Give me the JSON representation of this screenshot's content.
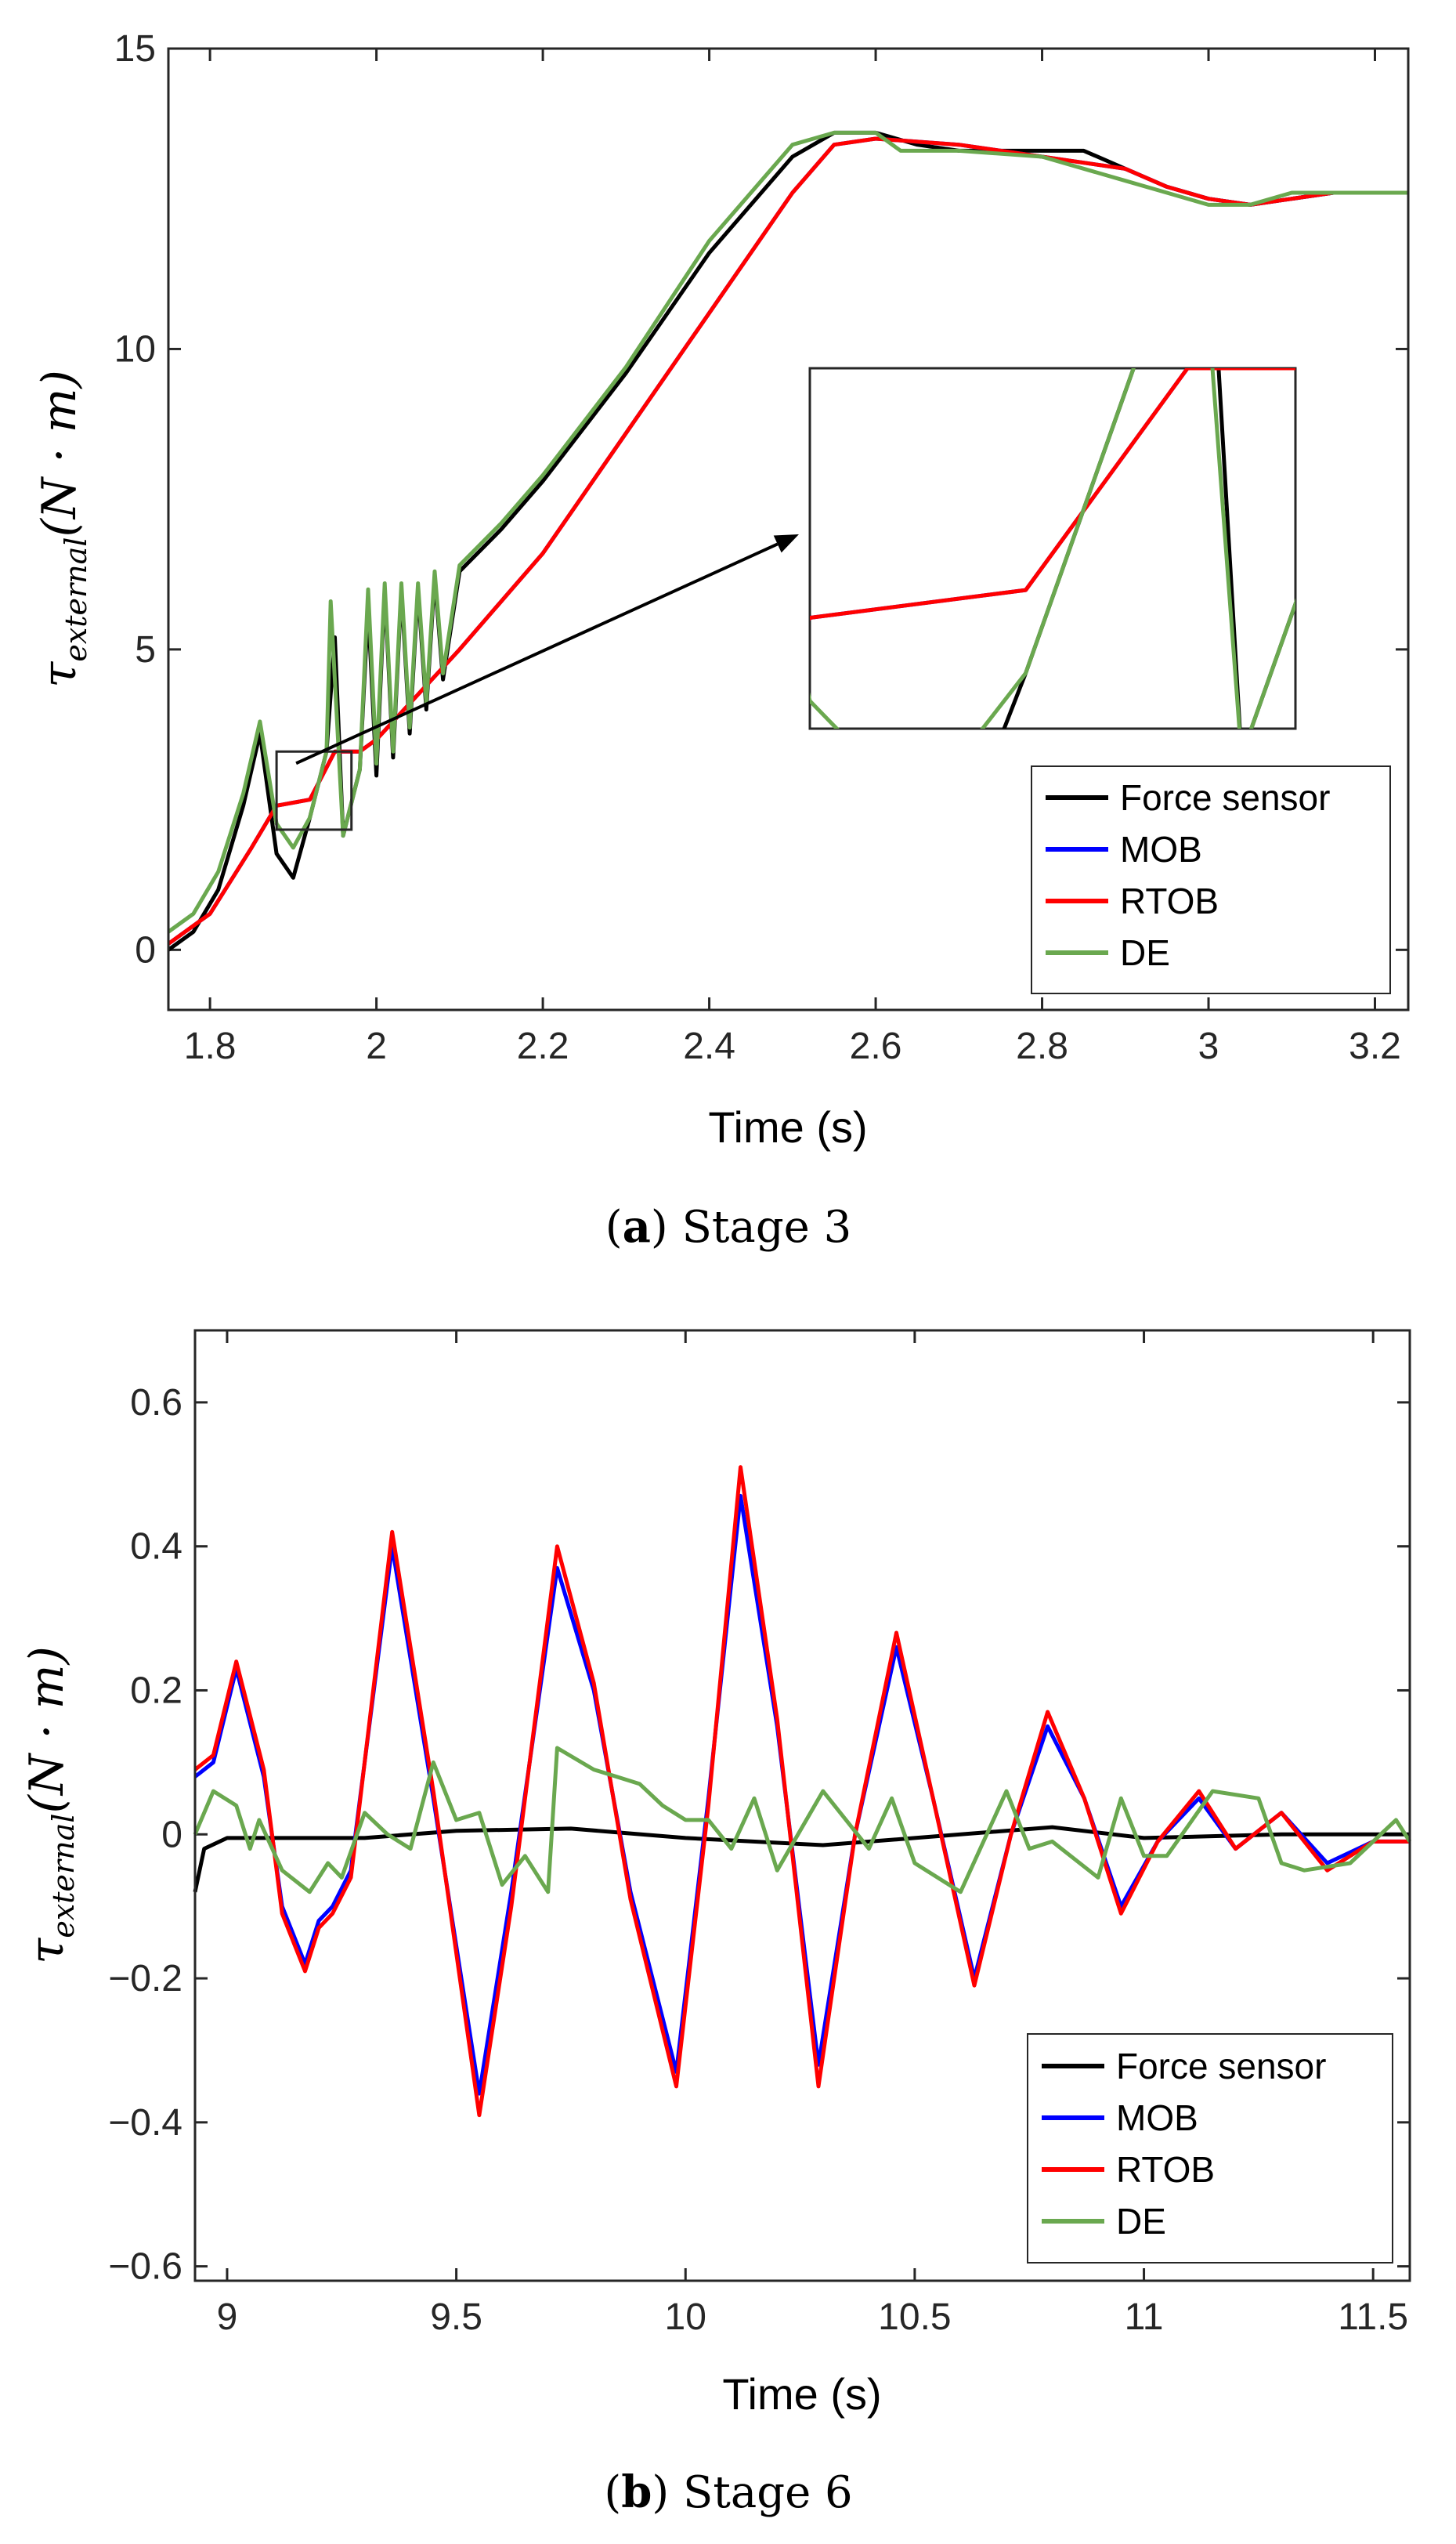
{
  "figure": {
    "legend": [
      "Force sensor",
      "MOB",
      "RTOB",
      "DE"
    ],
    "colors": {
      "Force sensor": "#000000",
      "MOB": "#0000ff",
      "RTOB": "#ff0000",
      "DE": "#6aa84f"
    }
  },
  "chart_data": [
    {
      "type": "line",
      "caption_letter": "a",
      "caption_text": "Stage 3",
      "xlabel": "Time (s)",
      "ylabel_symbol": "τ",
      "ylabel_sub": "external",
      "ylabel_rest": "(N · m)",
      "xlim": [
        1.75,
        3.24
      ],
      "ylim": [
        -1,
        15
      ],
      "xticks": [
        1.8,
        2,
        2.2,
        2.4,
        2.6,
        2.8,
        3,
        3.2
      ],
      "xtick_labels": [
        "1.8",
        "2",
        "2.2",
        "2.4",
        "2.6",
        "2.8",
        "3",
        "3.2"
      ],
      "yticks": [
        0,
        5,
        10,
        15
      ],
      "ytick_labels": [
        "0",
        "5",
        "10",
        "15"
      ],
      "legend_position": "lower-right",
      "inset": {
        "zoom_xlim": [
          1.88,
          1.97
        ],
        "zoom_ylim": [
          2.0,
          3.3
        ]
      },
      "series": [
        {
          "name": "Force sensor",
          "x": [
            1.75,
            1.78,
            1.81,
            1.84,
            1.86,
            1.88,
            1.9,
            1.92,
            1.94,
            1.95,
            1.96,
            1.98,
            1.99,
            2.0,
            2.01,
            2.02,
            2.03,
            2.04,
            2.05,
            2.06,
            2.07,
            2.08,
            2.1,
            2.15,
            2.2,
            2.3,
            2.4,
            2.5,
            2.55,
            2.6,
            2.65,
            2.7,
            2.8,
            2.85,
            2.9,
            2.95,
            3.0,
            3.05,
            3.1,
            3.15,
            3.2,
            3.24
          ],
          "y": [
            0.0,
            0.3,
            1.0,
            2.4,
            3.6,
            1.6,
            1.2,
            2.2,
            3.3,
            5.2,
            1.9,
            3.0,
            5.7,
            2.9,
            6.0,
            3.2,
            6.0,
            3.6,
            6.0,
            4.0,
            6.2,
            4.5,
            6.3,
            7.0,
            7.8,
            9.6,
            11.6,
            13.2,
            13.6,
            13.6,
            13.4,
            13.3,
            13.3,
            13.3,
            13.0,
            12.7,
            12.5,
            12.4,
            12.5,
            12.6,
            12.6,
            12.6
          ]
        },
        {
          "name": "MOB",
          "x": [
            1.75,
            1.8,
            1.85,
            1.88,
            1.92,
            1.95,
            1.98,
            2.0,
            2.1,
            2.2,
            2.3,
            2.4,
            2.5,
            2.55,
            2.6,
            2.7,
            2.8,
            2.9,
            2.95,
            3.0,
            3.05,
            3.1,
            3.15,
            3.2,
            3.24
          ],
          "y": [
            0.1,
            0.6,
            1.7,
            2.4,
            2.5,
            3.3,
            3.3,
            3.5,
            5.0,
            6.6,
            8.6,
            10.6,
            12.6,
            13.4,
            13.5,
            13.4,
            13.2,
            13.0,
            12.7,
            12.5,
            12.4,
            12.5,
            12.6,
            12.6,
            12.6
          ]
        },
        {
          "name": "RTOB",
          "x": [
            1.75,
            1.8,
            1.85,
            1.88,
            1.92,
            1.95,
            1.98,
            2.0,
            2.1,
            2.2,
            2.3,
            2.4,
            2.5,
            2.55,
            2.6,
            2.7,
            2.8,
            2.9,
            2.95,
            3.0,
            3.05,
            3.1,
            3.15,
            3.2,
            3.24
          ],
          "y": [
            0.1,
            0.6,
            1.7,
            2.4,
            2.5,
            3.3,
            3.3,
            3.5,
            5.0,
            6.6,
            8.6,
            10.6,
            12.6,
            13.4,
            13.5,
            13.4,
            13.2,
            13.0,
            12.7,
            12.5,
            12.4,
            12.5,
            12.6,
            12.6,
            12.6
          ]
        },
        {
          "name": "DE",
          "x": [
            1.75,
            1.78,
            1.81,
            1.84,
            1.86,
            1.88,
            1.9,
            1.92,
            1.94,
            1.945,
            1.96,
            1.98,
            1.99,
            2.0,
            2.01,
            2.02,
            2.03,
            2.04,
            2.05,
            2.06,
            2.07,
            2.08,
            2.1,
            2.15,
            2.2,
            2.3,
            2.4,
            2.5,
            2.55,
            2.6,
            2.63,
            2.7,
            2.8,
            2.9,
            2.95,
            3.0,
            3.05,
            3.1,
            3.15,
            3.2,
            3.24
          ],
          "y": [
            0.3,
            0.6,
            1.3,
            2.6,
            3.8,
            2.1,
            1.7,
            2.2,
            3.3,
            5.8,
            1.9,
            3.0,
            6.0,
            3.1,
            6.1,
            3.3,
            6.1,
            3.7,
            6.1,
            4.1,
            6.3,
            4.6,
            6.4,
            7.1,
            7.9,
            9.7,
            11.8,
            13.4,
            13.6,
            13.6,
            13.3,
            13.3,
            13.2,
            12.8,
            12.6,
            12.4,
            12.4,
            12.6,
            12.6,
            12.6,
            12.6
          ]
        }
      ]
    },
    {
      "type": "line",
      "caption_letter": "b",
      "caption_text": "Stage 6",
      "xlabel": "Time (s)",
      "ylabel_symbol": "τ",
      "ylabel_sub": "external",
      "ylabel_rest": "(N · m)",
      "xlim": [
        8.93,
        11.58
      ],
      "ylim": [
        -0.62,
        0.7
      ],
      "xticks": [
        9,
        9.5,
        10,
        10.5,
        11,
        11.5
      ],
      "xtick_labels": [
        "9",
        "9.5",
        "10",
        "10.5",
        "11",
        "11.5"
      ],
      "yticks": [
        -0.6,
        -0.4,
        -0.2,
        0,
        0.2,
        0.4,
        0.6
      ],
      "ytick_labels": [
        "−0.6",
        "−0.4",
        "−0.2",
        "0",
        "0.2",
        "0.4",
        "0.6"
      ],
      "legend_position": "lower-right",
      "series": [
        {
          "name": "Force sensor",
          "x": [
            8.93,
            8.95,
            9.0,
            9.3,
            9.5,
            9.75,
            10.0,
            10.3,
            10.5,
            10.8,
            11.0,
            11.3,
            11.58
          ],
          "y": [
            -0.08,
            -0.02,
            -0.005,
            -0.005,
            0.005,
            0.008,
            -0.005,
            -0.015,
            -0.005,
            0.01,
            -0.005,
            0.0,
            0.0
          ]
        },
        {
          "name": "MOB",
          "x": [
            8.93,
            8.97,
            9.02,
            9.08,
            9.12,
            9.17,
            9.2,
            9.23,
            9.27,
            9.36,
            9.45,
            9.55,
            9.62,
            9.72,
            9.8,
            9.88,
            9.98,
            10.05,
            10.12,
            10.2,
            10.29,
            10.37,
            10.46,
            10.54,
            10.63,
            10.71,
            10.79,
            10.87,
            10.95,
            11.03,
            11.12,
            11.2,
            11.3,
            11.4,
            11.5,
            11.58
          ],
          "y": [
            0.08,
            0.1,
            0.23,
            0.08,
            -0.1,
            -0.18,
            -0.12,
            -0.1,
            -0.05,
            0.4,
            0.05,
            -0.36,
            -0.08,
            0.37,
            0.2,
            -0.08,
            -0.33,
            0.05,
            0.47,
            0.15,
            -0.32,
            0.0,
            0.26,
            0.05,
            -0.2,
            0.0,
            0.15,
            0.05,
            -0.1,
            -0.01,
            0.05,
            -0.02,
            0.03,
            -0.04,
            -0.01,
            -0.01
          ]
        },
        {
          "name": "RTOB",
          "x": [
            8.93,
            8.97,
            9.02,
            9.08,
            9.12,
            9.17,
            9.2,
            9.23,
            9.27,
            9.36,
            9.45,
            9.55,
            9.62,
            9.72,
            9.8,
            9.88,
            9.98,
            10.05,
            10.12,
            10.2,
            10.29,
            10.37,
            10.46,
            10.54,
            10.63,
            10.71,
            10.79,
            10.87,
            10.95,
            11.03,
            11.12,
            11.2,
            11.3,
            11.4,
            11.5,
            11.58
          ],
          "y": [
            0.09,
            0.11,
            0.24,
            0.09,
            -0.11,
            -0.19,
            -0.13,
            -0.11,
            -0.06,
            0.42,
            0.06,
            -0.39,
            -0.1,
            0.4,
            0.21,
            -0.09,
            -0.35,
            0.04,
            0.51,
            0.16,
            -0.35,
            0.0,
            0.28,
            0.05,
            -0.21,
            0.0,
            0.17,
            0.05,
            -0.11,
            -0.01,
            0.06,
            -0.02,
            0.03,
            -0.05,
            -0.01,
            -0.01
          ]
        },
        {
          "name": "DE",
          "x": [
            8.93,
            8.97,
            9.02,
            9.05,
            9.07,
            9.12,
            9.18,
            9.22,
            9.25,
            9.3,
            9.35,
            9.4,
            9.45,
            9.5,
            9.55,
            9.6,
            9.65,
            9.7,
            9.72,
            9.8,
            9.9,
            9.95,
            10.0,
            10.05,
            10.1,
            10.15,
            10.2,
            10.3,
            10.4,
            10.45,
            10.5,
            10.6,
            10.7,
            10.75,
            10.8,
            10.9,
            10.95,
            11.0,
            11.05,
            11.15,
            11.25,
            11.3,
            11.35,
            11.45,
            11.55,
            11.58
          ],
          "y": [
            0.0,
            0.06,
            0.04,
            -0.02,
            0.02,
            -0.05,
            -0.08,
            -0.04,
            -0.06,
            0.03,
            0.0,
            -0.02,
            0.1,
            0.02,
            0.03,
            -0.07,
            -0.03,
            -0.08,
            0.12,
            0.09,
            0.07,
            0.04,
            0.02,
            0.02,
            -0.02,
            0.05,
            -0.05,
            0.06,
            -0.02,
            0.05,
            -0.04,
            -0.08,
            0.06,
            -0.02,
            -0.01,
            -0.06,
            0.05,
            -0.03,
            -0.03,
            0.06,
            0.05,
            -0.04,
            -0.05,
            -0.04,
            0.02,
            -0.01
          ]
        }
      ]
    }
  ]
}
